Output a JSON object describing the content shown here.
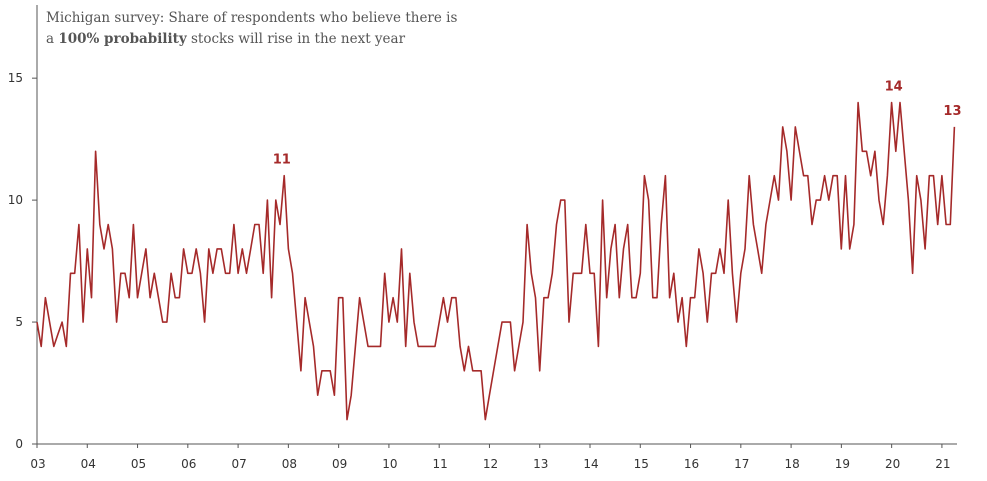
{
  "chart_data": {
    "type": "line",
    "title_parts": {
      "line1": "Michigan survey: Share of respondents who believe there is",
      "line2_pre": "a ",
      "line2_bold": "100% probability",
      "line2_post": " stocks will rise in the next year"
    },
    "xlabel": "",
    "ylabel": "",
    "ylim": [
      0,
      18
    ],
    "yticks": [
      0,
      5,
      10,
      15
    ],
    "ytick_labels": [
      "0",
      "5",
      "10",
      "15"
    ],
    "xticks": [
      2003,
      2004,
      2005,
      2006,
      2007,
      2008,
      2009,
      2010,
      2011,
      2012,
      2013,
      2014,
      2015,
      2016,
      2017,
      2018,
      2019,
      2020,
      2021
    ],
    "xtick_labels": [
      "03",
      "04",
      "05",
      "06",
      "07",
      "08",
      "09",
      "10",
      "11",
      "12",
      "13",
      "14",
      "15",
      "16",
      "17",
      "18",
      "19",
      "20",
      "21"
    ],
    "x_start": 2003.0,
    "x_step": 0.08333,
    "series": [
      {
        "name": "Share 100% probability",
        "color": "#a52a2a",
        "values": [
          5,
          4,
          6,
          5,
          4,
          4.5,
          5,
          4,
          7,
          7,
          9,
          5,
          8,
          6,
          12,
          9,
          8,
          9,
          8,
          5,
          7,
          7,
          6,
          9,
          6,
          7,
          8,
          6,
          7,
          6,
          5,
          5,
          7,
          6,
          6,
          8,
          7,
          7,
          8,
          7,
          5,
          8,
          7,
          8,
          8,
          7,
          7,
          9,
          7,
          8,
          7,
          8,
          9,
          9,
          7,
          10,
          6,
          10,
          9,
          11,
          8,
          7,
          5,
          3,
          6,
          5,
          4,
          2,
          3,
          3,
          3,
          2,
          6,
          6,
          1,
          2,
          4,
          6,
          5,
          4,
          4,
          4,
          4,
          7,
          5,
          6,
          5,
          8,
          4,
          7,
          5,
          4,
          4,
          4,
          4,
          4,
          5,
          6,
          5,
          6,
          6,
          4,
          3,
          4,
          3,
          3,
          3,
          1,
          2,
          3,
          4,
          5,
          5,
          5,
          3,
          4,
          5,
          9,
          7,
          6,
          3,
          6,
          6,
          7,
          9,
          10,
          10,
          5,
          7,
          7,
          7,
          9,
          7,
          7,
          4,
          10,
          6,
          8,
          9,
          6,
          8,
          9,
          6,
          6,
          7,
          11,
          10,
          6,
          6,
          9,
          11,
          6,
          7,
          5,
          6,
          4,
          6,
          6,
          8,
          7,
          5,
          7,
          7,
          8,
          7,
          10,
          7,
          5,
          7,
          8,
          11,
          9,
          8,
          7,
          9,
          10,
          11,
          10,
          13,
          12,
          10,
          13,
          12,
          11,
          11,
          9,
          10,
          10,
          11,
          10,
          11,
          11,
          8,
          11,
          8,
          9,
          14,
          12,
          12,
          11,
          12,
          10,
          9,
          11,
          14,
          12,
          14,
          12,
          10,
          7,
          11,
          10,
          8,
          11,
          11,
          9,
          11,
          9,
          9,
          13
        ]
      }
    ],
    "annotations": [
      {
        "text": "11",
        "x": 2007.83,
        "y": 11
      },
      {
        "text": "14",
        "x": 2020.0,
        "y": 14
      },
      {
        "text": "13",
        "x": 2021.17,
        "y": 13
      }
    ],
    "grid": false,
    "legend": "none"
  }
}
